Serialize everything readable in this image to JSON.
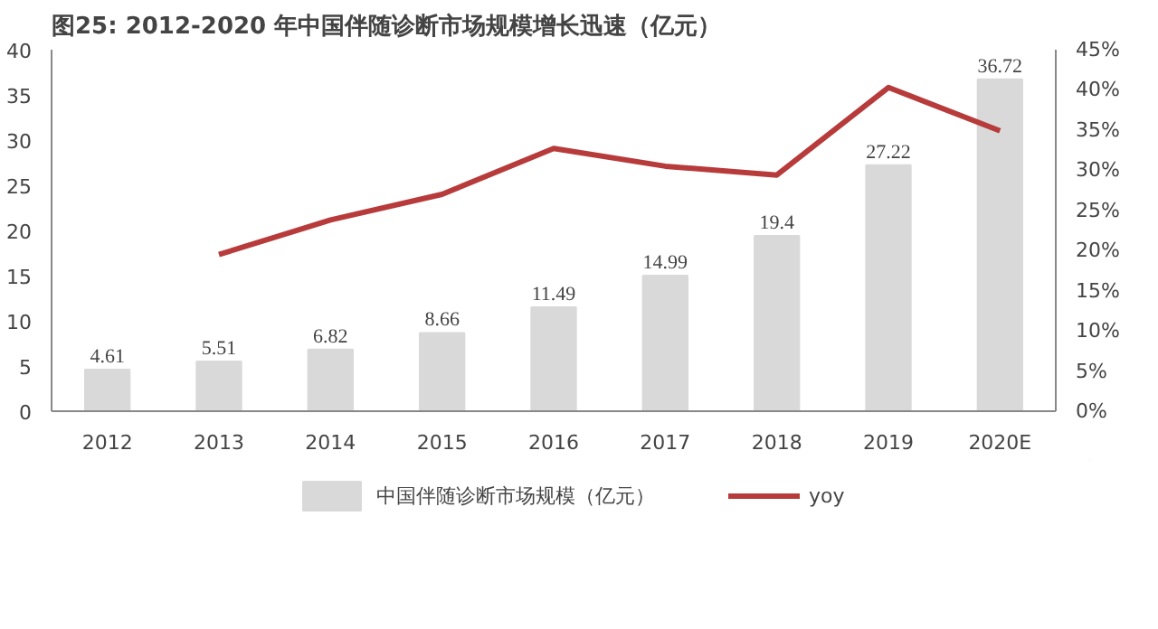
{
  "chart_data": {
    "type": "bar",
    "title": "图25:      2012-2020 年中国伴随诊断市场规模增长迅速（亿元）",
    "categories": [
      "2012",
      "2013",
      "2014",
      "2015",
      "2016",
      "2017",
      "2018",
      "2019",
      "2020E"
    ],
    "series": [
      {
        "name": "中国伴随诊断市场规模（亿元）",
        "color": "#d9d9d9",
        "values": [
          4.61,
          5.51,
          6.82,
          8.66,
          11.49,
          14.99,
          19.4,
          27.22,
          36.72
        ],
        "value_labels": [
          "4.61",
          "5.51",
          "6.82",
          "8.66",
          "11.49",
          "14.99",
          "19.4",
          "27.22",
          "36.72"
        ]
      },
      {
        "name": "yoy",
        "type": "line",
        "axis": "y2",
        "color": "#b83b3b",
        "values": [
          null,
          19.5,
          23.8,
          27.0,
          32.7,
          30.5,
          29.4,
          40.3,
          34.9
        ]
      }
    ],
    "ylim": [
      0,
      40
    ],
    "yticks": [
      0,
      5,
      10,
      15,
      20,
      25,
      30,
      35,
      40
    ],
    "y2lim": [
      0,
      45
    ],
    "y2ticks": [
      {
        "value": 0,
        "label": "0%"
      },
      {
        "value": 5,
        "label": "5%"
      },
      {
        "value": 10,
        "label": "10%"
      },
      {
        "value": 15,
        "label": "15%"
      },
      {
        "value": 20,
        "label": "20%"
      },
      {
        "value": 25,
        "label": "25%"
      },
      {
        "value": 30,
        "label": "30%"
      },
      {
        "value": 35,
        "label": "35%"
      },
      {
        "value": 40,
        "label": "40%"
      },
      {
        "value": 45,
        "label": "45%"
      }
    ],
    "legend": "bottom",
    "grid": false
  }
}
